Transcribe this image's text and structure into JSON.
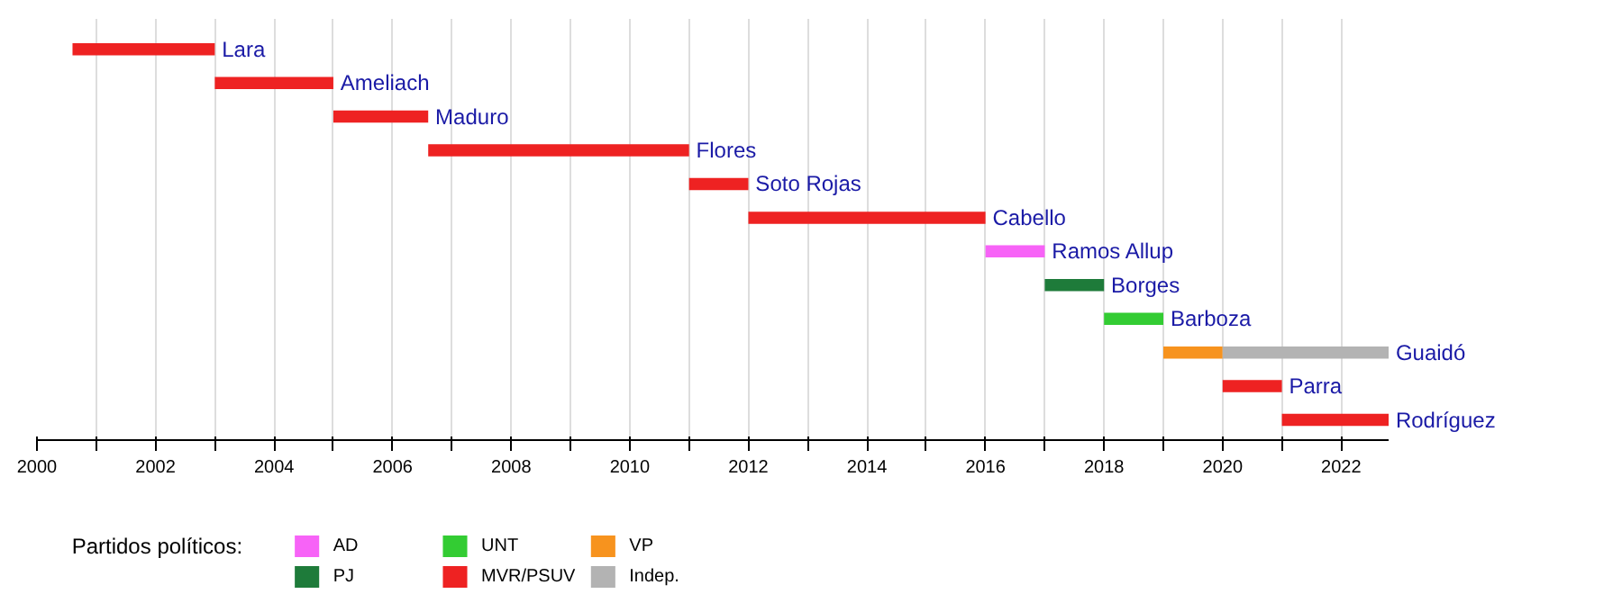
{
  "chart_data": {
    "type": "bar",
    "orientation": "horizontal",
    "legend_title": "Partidos políticos:",
    "categories": [
      "Lara",
      "Ameliach",
      "Maduro",
      "Flores",
      "Soto Rojas",
      "Cabello",
      "Ramos Allup",
      "Borges",
      "Barboza",
      "Guaidó",
      "Parra",
      "Rodríguez"
    ],
    "series": [
      {
        "name": "AD",
        "color": "#f763f7",
        "base": [
          null,
          null,
          null,
          null,
          null,
          null,
          2016.0,
          null,
          null,
          null,
          null,
          null
        ],
        "values": [
          null,
          null,
          null,
          null,
          null,
          null,
          1.0,
          null,
          null,
          null,
          null,
          null
        ]
      },
      {
        "name": "PJ",
        "color": "#1e7b3a",
        "base": [
          null,
          null,
          null,
          null,
          null,
          null,
          null,
          2017.0,
          null,
          null,
          null,
          null
        ],
        "values": [
          null,
          null,
          null,
          null,
          null,
          null,
          null,
          1.0,
          null,
          null,
          null,
          null
        ]
      },
      {
        "name": "UNT",
        "color": "#33cc33",
        "base": [
          null,
          null,
          null,
          null,
          null,
          null,
          null,
          null,
          2018.0,
          null,
          null,
          null
        ],
        "values": [
          null,
          null,
          null,
          null,
          null,
          null,
          null,
          null,
          1.0,
          null,
          null,
          null
        ]
      },
      {
        "name": "MVR/PSUV",
        "color": "#ee2222",
        "base": [
          2000.6,
          2003.0,
          2005.0,
          2006.6,
          2011.0,
          2012.0,
          null,
          null,
          null,
          null,
          2020.0,
          2021.0
        ],
        "values": [
          2.4,
          2.0,
          1.6,
          4.4,
          1.0,
          4.0,
          null,
          null,
          null,
          null,
          1.0,
          1.8
        ]
      },
      {
        "name": "VP",
        "color": "#f7931e",
        "base": [
          null,
          null,
          null,
          null,
          null,
          null,
          null,
          null,
          null,
          2019.0,
          null,
          null
        ],
        "values": [
          null,
          null,
          null,
          null,
          null,
          null,
          null,
          null,
          null,
          1.0,
          null,
          null
        ]
      },
      {
        "name": "Indep.",
        "color": "#b3b3b3",
        "base": [
          null,
          null,
          null,
          null,
          null,
          null,
          null,
          null,
          null,
          2020.0,
          null,
          null
        ],
        "values": [
          null,
          null,
          null,
          null,
          null,
          null,
          null,
          null,
          null,
          2.8,
          null,
          null
        ]
      }
    ],
    "xlim": [
      2000,
      2022.8
    ],
    "xticks": [
      2000,
      {
        "value": 2001,
        "label": null
      },
      2002,
      {
        "value": 2003,
        "label": null
      },
      2004,
      {
        "value": 2005,
        "label": null
      },
      2006,
      {
        "value": 2007,
        "label": null
      },
      2008,
      {
        "value": 2009,
        "label": null
      },
      2010,
      {
        "value": 2011,
        "label": null
      },
      2012,
      {
        "value": 2013,
        "label": null
      },
      2014,
      {
        "value": 2015,
        "label": null
      },
      2016,
      {
        "value": 2017,
        "label": null
      },
      2018,
      {
        "value": 2019,
        "label": null
      },
      2020,
      {
        "value": 2021,
        "label": null
      },
      2022
    ],
    "grid": "x",
    "legend": "bottom left"
  }
}
